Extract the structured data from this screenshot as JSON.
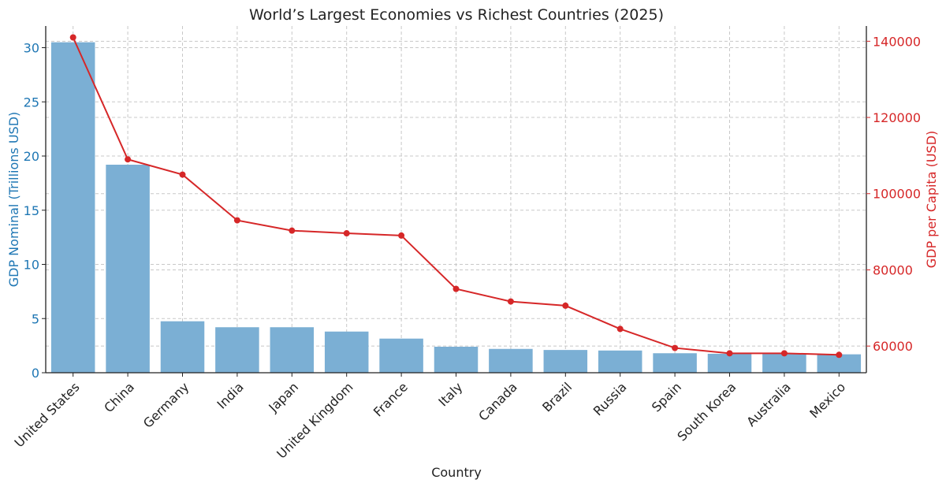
{
  "chart_data": {
    "type": "bar",
    "title": "World’s Largest Economies vs Richest Countries (2025)",
    "xlabel": "Country",
    "categories": [
      "United States",
      "China",
      "Germany",
      "India",
      "Japan",
      "United Kingdom",
      "France",
      "Italy",
      "Canada",
      "Brazil",
      "Russia",
      "Spain",
      "South Korea",
      "Australia",
      "Mexico"
    ],
    "series": [
      {
        "name": "GDP Nominal (Trillions USD)",
        "type": "bar",
        "axis": "left",
        "color": "#7bafd4",
        "values": [
          30.5,
          19.2,
          4.75,
          4.2,
          4.2,
          3.8,
          3.15,
          2.4,
          2.2,
          2.1,
          2.05,
          1.8,
          1.75,
          1.75,
          1.7
        ]
      },
      {
        "name": "GDP per Capita (USD)",
        "type": "line",
        "axis": "right",
        "color": "#d62728",
        "values": [
          141000,
          109000,
          105000,
          93000,
          90300,
          89600,
          89000,
          75000,
          71700,
          70600,
          64500,
          59500,
          58100,
          58100,
          57700
        ]
      }
    ],
    "y_left": {
      "label": "GDP Nominal (Trillions USD)",
      "ylim": [
        0,
        32
      ],
      "ticks": [
        0,
        5,
        10,
        15,
        20,
        25,
        30
      ],
      "color": "#1f77b4"
    },
    "y_right": {
      "label": "GDP per Capita (USD)",
      "ylim": [
        53000,
        144000
      ],
      "ticks": [
        60000,
        80000,
        100000,
        120000,
        140000
      ],
      "color": "#d62728"
    },
    "grid": true,
    "legend": "none"
  }
}
